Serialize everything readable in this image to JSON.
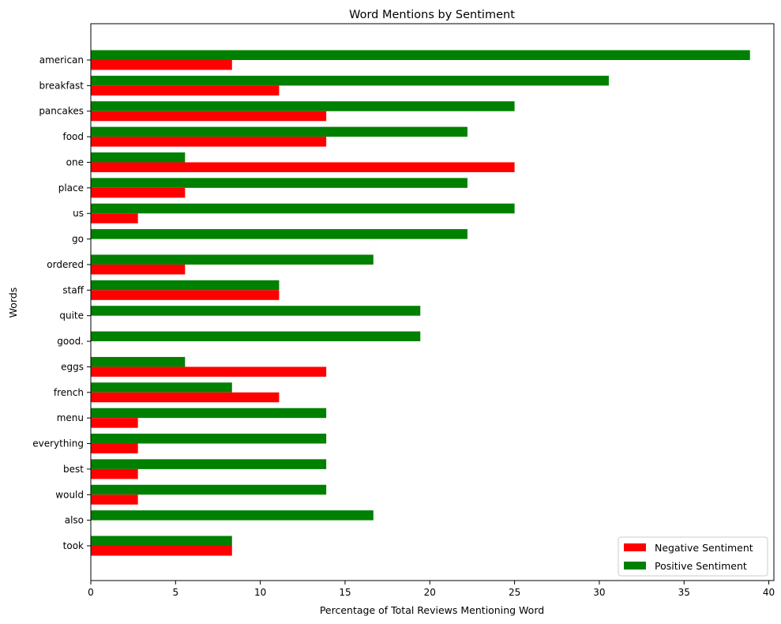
{
  "chart_data": {
    "type": "bar",
    "orientation": "horizontal",
    "title": "Word Mentions by Sentiment",
    "xlabel": "Percentage of Total Reviews Mentioning Word",
    "ylabel": "Words",
    "xlim": [
      0,
      40.3
    ],
    "xticks": [
      0,
      5,
      10,
      15,
      20,
      25,
      30,
      35,
      40
    ],
    "grid": false,
    "legend_position": "bottom-right",
    "categories": [
      "american",
      "breakfast",
      "pancakes",
      "food",
      "one",
      "place",
      "us",
      "go",
      "ordered",
      "staff",
      "quite",
      "good.",
      "eggs",
      "french",
      "menu",
      "everything",
      "best",
      "would",
      "also",
      "took"
    ],
    "series": [
      {
        "name": "Negative Sentiment",
        "color": "#ff0000",
        "values": [
          8.33,
          11.11,
          13.89,
          13.89,
          25.0,
          5.56,
          2.78,
          0,
          5.56,
          11.11,
          0,
          0,
          13.89,
          11.11,
          2.78,
          2.78,
          2.78,
          2.78,
          0,
          8.33
        ]
      },
      {
        "name": "Positive Sentiment",
        "color": "#008000",
        "values": [
          38.89,
          30.56,
          25.0,
          22.22,
          5.56,
          22.22,
          25.0,
          22.22,
          16.67,
          11.11,
          19.44,
          19.44,
          5.56,
          8.33,
          13.89,
          13.89,
          13.89,
          13.89,
          16.67,
          8.33
        ]
      }
    ]
  }
}
